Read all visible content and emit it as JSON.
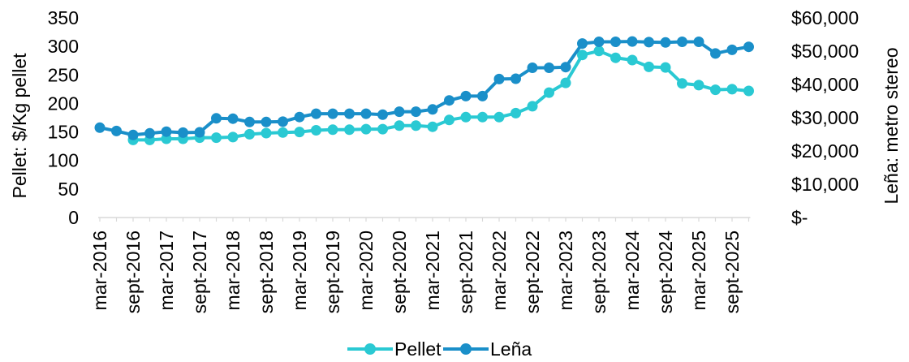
{
  "colors": {
    "pellet": "#2ac9d3",
    "lena": "#1a8fc9",
    "axis": "#d9d9d9",
    "text": "#000000"
  },
  "chart_data": {
    "type": "line",
    "title": "",
    "ylabel": "Pellet: $/Kg pellet",
    "y2label": "Leña: metro stereo",
    "ylim": [
      0,
      350
    ],
    "y2lim": [
      0,
      60000
    ],
    "yticks": [
      "0",
      "50",
      "100",
      "150",
      "200",
      "250",
      "300",
      "350"
    ],
    "y2ticks": [
      "$-",
      "$10,000",
      "$20,000",
      "$30,000",
      "$40,000",
      "$50,000",
      "$60,000"
    ],
    "xticks": [
      "mar-2016",
      "sept-2016",
      "mar-2017",
      "sept-2017",
      "mar-2018",
      "sept-2018",
      "mar-2019",
      "sept-2019",
      "mar-2020",
      "sept-2020",
      "mar-2021",
      "sept-2021",
      "mar-2022",
      "sept-2022",
      "mar-2023",
      "sept-2023",
      "mar-2024",
      "sept-2024",
      "mar-2025",
      "sept-2025"
    ],
    "legend_position": "bottom",
    "grid": false,
    "series": [
      {
        "name": "Pellet",
        "axis": "left",
        "values": [
          null,
          null,
          136,
          136,
          138,
          138,
          140,
          140,
          141,
          146,
          148,
          149,
          150,
          153,
          154,
          154,
          155,
          155,
          161,
          161,
          159,
          171,
          176,
          176,
          176,
          183,
          195,
          219,
          236,
          285,
          292,
          280,
          276,
          264,
          263,
          235,
          232,
          224,
          225,
          222
        ]
      },
      {
        "name": "Leña",
        "axis": "right",
        "values": [
          27000,
          26000,
          24800,
          25300,
          25800,
          25500,
          25600,
          29800,
          29700,
          28700,
          28700,
          28800,
          30200,
          31200,
          31200,
          31200,
          31200,
          30900,
          31800,
          31800,
          32500,
          35200,
          36500,
          36500,
          41600,
          41700,
          45000,
          45000,
          45200,
          52300,
          52800,
          52800,
          52900,
          52700,
          52600,
          52800,
          52800,
          49300,
          50400,
          51300
        ]
      }
    ]
  }
}
